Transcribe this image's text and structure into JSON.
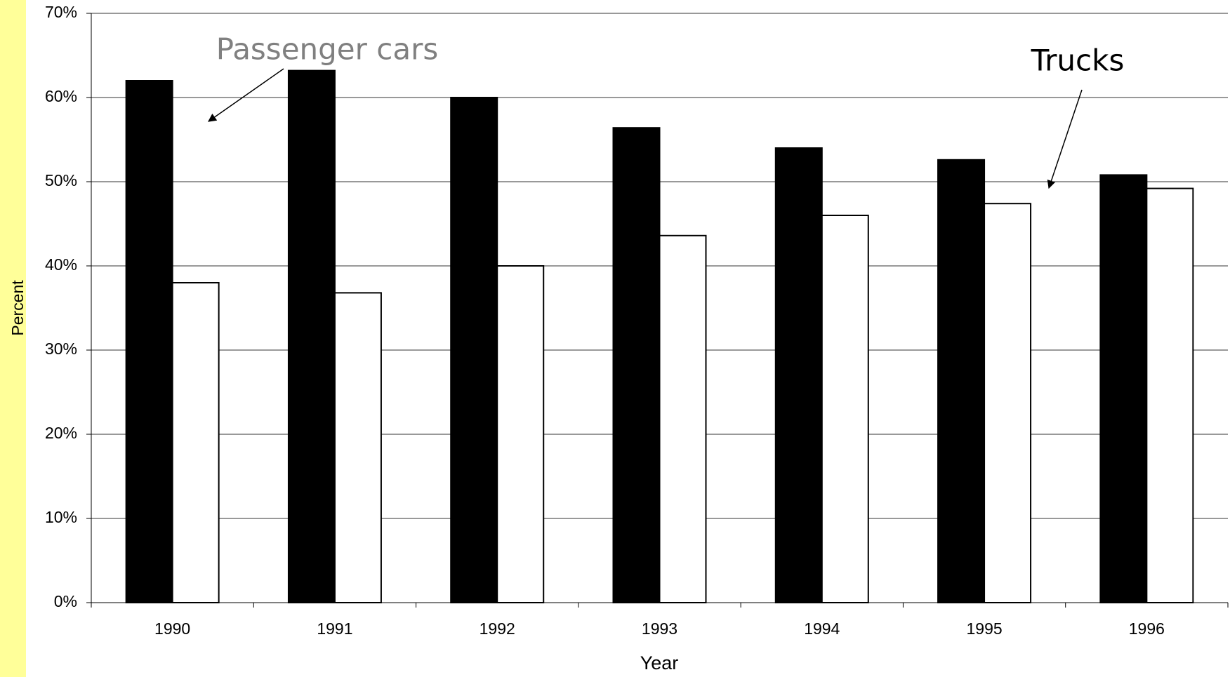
{
  "chart_data": {
    "type": "bar",
    "x_label": "Year",
    "y_label": "Percent",
    "categories": [
      "1990",
      "1991",
      "1992",
      "1993",
      "1994",
      "1995",
      "1996"
    ],
    "series": [
      {
        "name": "Passenger cars",
        "color": "#000000",
        "values": [
          62,
          63.2,
          60,
          56.4,
          54,
          52.6,
          50.8
        ]
      },
      {
        "name": "Trucks",
        "color": "#ffffff",
        "values": [
          38,
          36.8,
          40,
          43.6,
          46,
          47.4,
          49.2
        ]
      }
    ],
    "ylim": [
      0,
      70
    ],
    "yticks": [
      {
        "value": 0,
        "label": "0%"
      },
      {
        "value": 10,
        "label": "10%"
      },
      {
        "value": 20,
        "label": "20%"
      },
      {
        "value": 30,
        "label": "30%"
      },
      {
        "value": 40,
        "label": "40%"
      },
      {
        "value": 50,
        "label": "50%"
      },
      {
        "value": 60,
        "label": "60%"
      },
      {
        "value": 70,
        "label": "70%"
      }
    ],
    "grid": true
  }
}
